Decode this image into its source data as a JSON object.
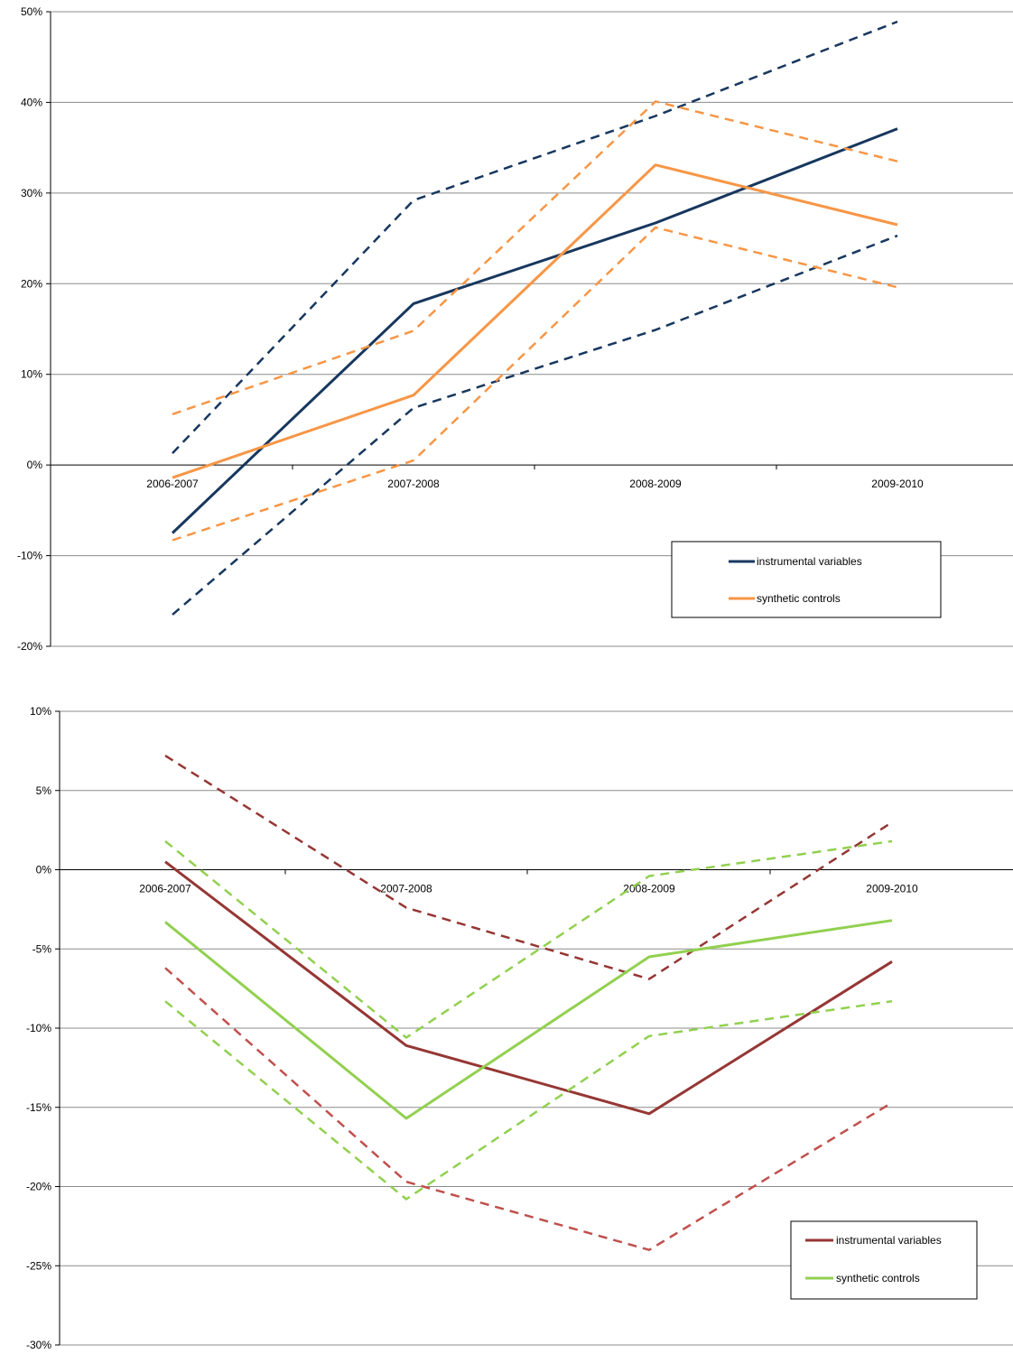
{
  "chart_data": [
    {
      "type": "line",
      "categories": [
        "2006-2007",
        "2007-2008",
        "2008-2009",
        "2009-2010"
      ],
      "ylim": [
        -0.2,
        0.5
      ],
      "yticks": [
        -0.2,
        -0.1,
        0.0,
        0.1,
        0.2,
        0.3,
        0.4,
        0.5
      ],
      "ytick_labels": [
        "-20%",
        "-10%",
        "0%",
        "10%",
        "20%",
        "30%",
        "40%",
        "50%"
      ],
      "grid": true,
      "legend_position": "bottom-right",
      "series": [
        {
          "name": "instrumental variables",
          "key": "iv",
          "color": "#17375e",
          "style": "solid",
          "values": [
            -0.075,
            0.178,
            0.267,
            0.371
          ]
        },
        {
          "key": "iv_upper",
          "color": "#17375e",
          "style": "dashed",
          "values": [
            0.013,
            0.292,
            0.385,
            0.489
          ]
        },
        {
          "key": "iv_lower",
          "color": "#17375e",
          "style": "dashed",
          "values": [
            -0.165,
            0.063,
            0.149,
            0.253
          ]
        },
        {
          "name": "synthetic controls",
          "key": "sc",
          "color": "#f79646",
          "style": "solid",
          "values": [
            -0.014,
            0.077,
            0.331,
            0.265
          ]
        },
        {
          "key": "sc_upper",
          "color": "#f79646",
          "style": "dashed",
          "values": [
            0.056,
            0.148,
            0.401,
            0.335
          ]
        },
        {
          "key": "sc_lower",
          "color": "#f79646",
          "style": "dashed",
          "values": [
            -0.083,
            0.005,
            0.262,
            0.196
          ]
        }
      ]
    },
    {
      "type": "line",
      "categories": [
        "2006-2007",
        "2007-2008",
        "2008-2009",
        "2009-2010"
      ],
      "ylim": [
        -0.3,
        0.1
      ],
      "yticks": [
        -0.3,
        -0.25,
        -0.2,
        -0.15,
        -0.1,
        -0.05,
        0.0,
        0.05,
        0.1
      ],
      "ytick_labels": [
        "-30%",
        "-25%",
        "-20%",
        "-15%",
        "-10%",
        "-5%",
        "0%",
        "5%",
        "10%"
      ],
      "grid": true,
      "legend_position": "bottom-right",
      "series": [
        {
          "name": "instrumental variables",
          "key": "iv",
          "color": "#953735",
          "style": "solid",
          "values": [
            0.005,
            -0.111,
            -0.154,
            -0.058
          ]
        },
        {
          "key": "iv_upper",
          "color": "#953735",
          "style": "dashed",
          "values": [
            0.072,
            -0.024,
            -0.069,
            0.03
          ]
        },
        {
          "key": "iv_lower",
          "color": "#c0504d",
          "style": "dashed",
          "values": [
            -0.062,
            -0.197,
            -0.24,
            -0.147
          ]
        },
        {
          "name": "synthetic controls",
          "key": "sc",
          "color": "#92d050",
          "style": "solid",
          "values": [
            -0.033,
            -0.157,
            -0.055,
            -0.032
          ]
        },
        {
          "key": "sc_upper",
          "color": "#92d050",
          "style": "dashed",
          "values": [
            0.018,
            -0.106,
            -0.004,
            0.018
          ]
        },
        {
          "key": "sc_lower",
          "color": "#92d050",
          "style": "dashed",
          "values": [
            -0.083,
            -0.208,
            -0.105,
            -0.083
          ]
        }
      ]
    }
  ]
}
